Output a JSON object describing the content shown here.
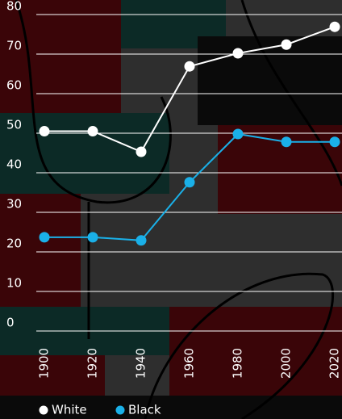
{
  "chart_data": {
    "type": "line",
    "categories": [
      "1900",
      "1920",
      "1940",
      "1960",
      "1980",
      "2000",
      "2020"
    ],
    "series": [
      {
        "name": "White",
        "color": "#ffffff",
        "values": [
          50.5,
          50.5,
          45.3,
          66.9,
          70.2,
          72.4,
          76.9
        ]
      },
      {
        "name": "Black",
        "color": "#1ab0e8",
        "values": [
          23.7,
          23.7,
          22.9,
          37.6,
          49.8,
          47.8,
          47.8
        ]
      }
    ],
    "ylim": [
      0,
      82
    ],
    "yticks": [
      0,
      10,
      20,
      30,
      40,
      50,
      60,
      70,
      80
    ],
    "grid": true,
    "legend": "bottom-left"
  }
}
